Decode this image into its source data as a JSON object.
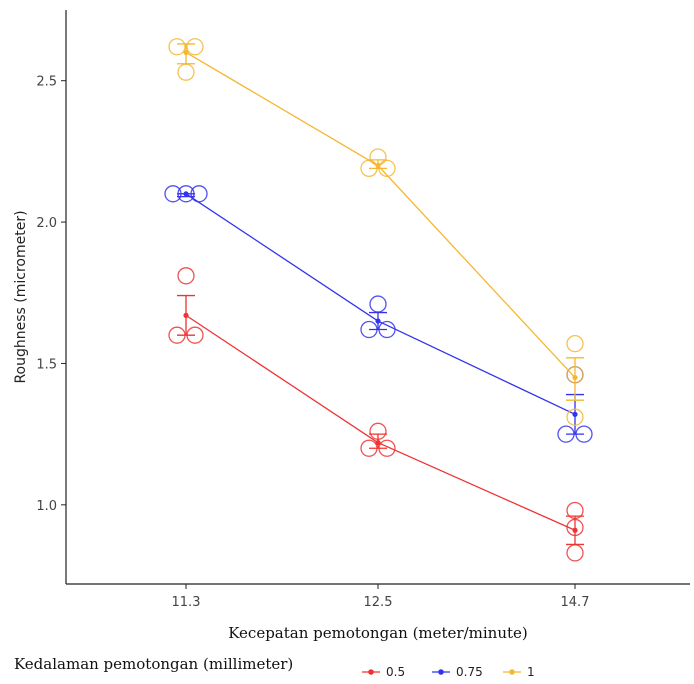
{
  "chart_data": {
    "type": "line",
    "xlabel": "Kecepatan pemotongan (meter/minute)",
    "ylabel": "Roughness (micrometer)",
    "x_categories": [
      "11.3",
      "12.5",
      "14.7"
    ],
    "ylim": [
      0.72,
      2.75
    ],
    "yticks": [
      1.0,
      1.5,
      2.0,
      2.5
    ],
    "ytick_labels": [
      "1.0",
      "1.5",
      "2.0",
      "2.5"
    ],
    "grid": false,
    "legend": {
      "title": "Kedalaman pemotongan (millimeter)",
      "placement": "bottom"
    },
    "series": [
      {
        "name": "0.5",
        "color": "#ee3333",
        "means": [
          1.67,
          1.22,
          0.91
        ],
        "err_low": [
          1.6,
          1.2,
          0.86
        ],
        "err_high": [
          1.74,
          1.25,
          0.96
        ],
        "observations": [
          [
            1.81,
            1.6,
            1.6
          ],
          [
            1.26,
            1.2,
            1.2
          ],
          [
            0.98,
            0.92,
            0.83
          ]
        ]
      },
      {
        "name": "0.75",
        "color": "#3333ee",
        "means": [
          2.1,
          1.65,
          1.32
        ],
        "err_low": [
          2.09,
          1.62,
          1.25
        ],
        "err_high": [
          2.1,
          1.68,
          1.39
        ],
        "observations": [
          [
            2.1,
            2.1,
            2.1
          ],
          [
            1.71,
            1.62,
            1.62
          ],
          [
            1.46,
            1.25,
            1.25
          ]
        ]
      },
      {
        "name": "1",
        "color": "#f5b731",
        "means": [
          2.6,
          2.2,
          1.45
        ],
        "err_low": [
          2.56,
          2.19,
          1.37
        ],
        "err_high": [
          2.63,
          2.22,
          1.52
        ],
        "observations": [
          [
            2.62,
            2.62,
            2.53
          ],
          [
            2.23,
            2.19,
            2.19
          ],
          [
            1.57,
            1.46,
            1.31
          ]
        ]
      }
    ]
  }
}
